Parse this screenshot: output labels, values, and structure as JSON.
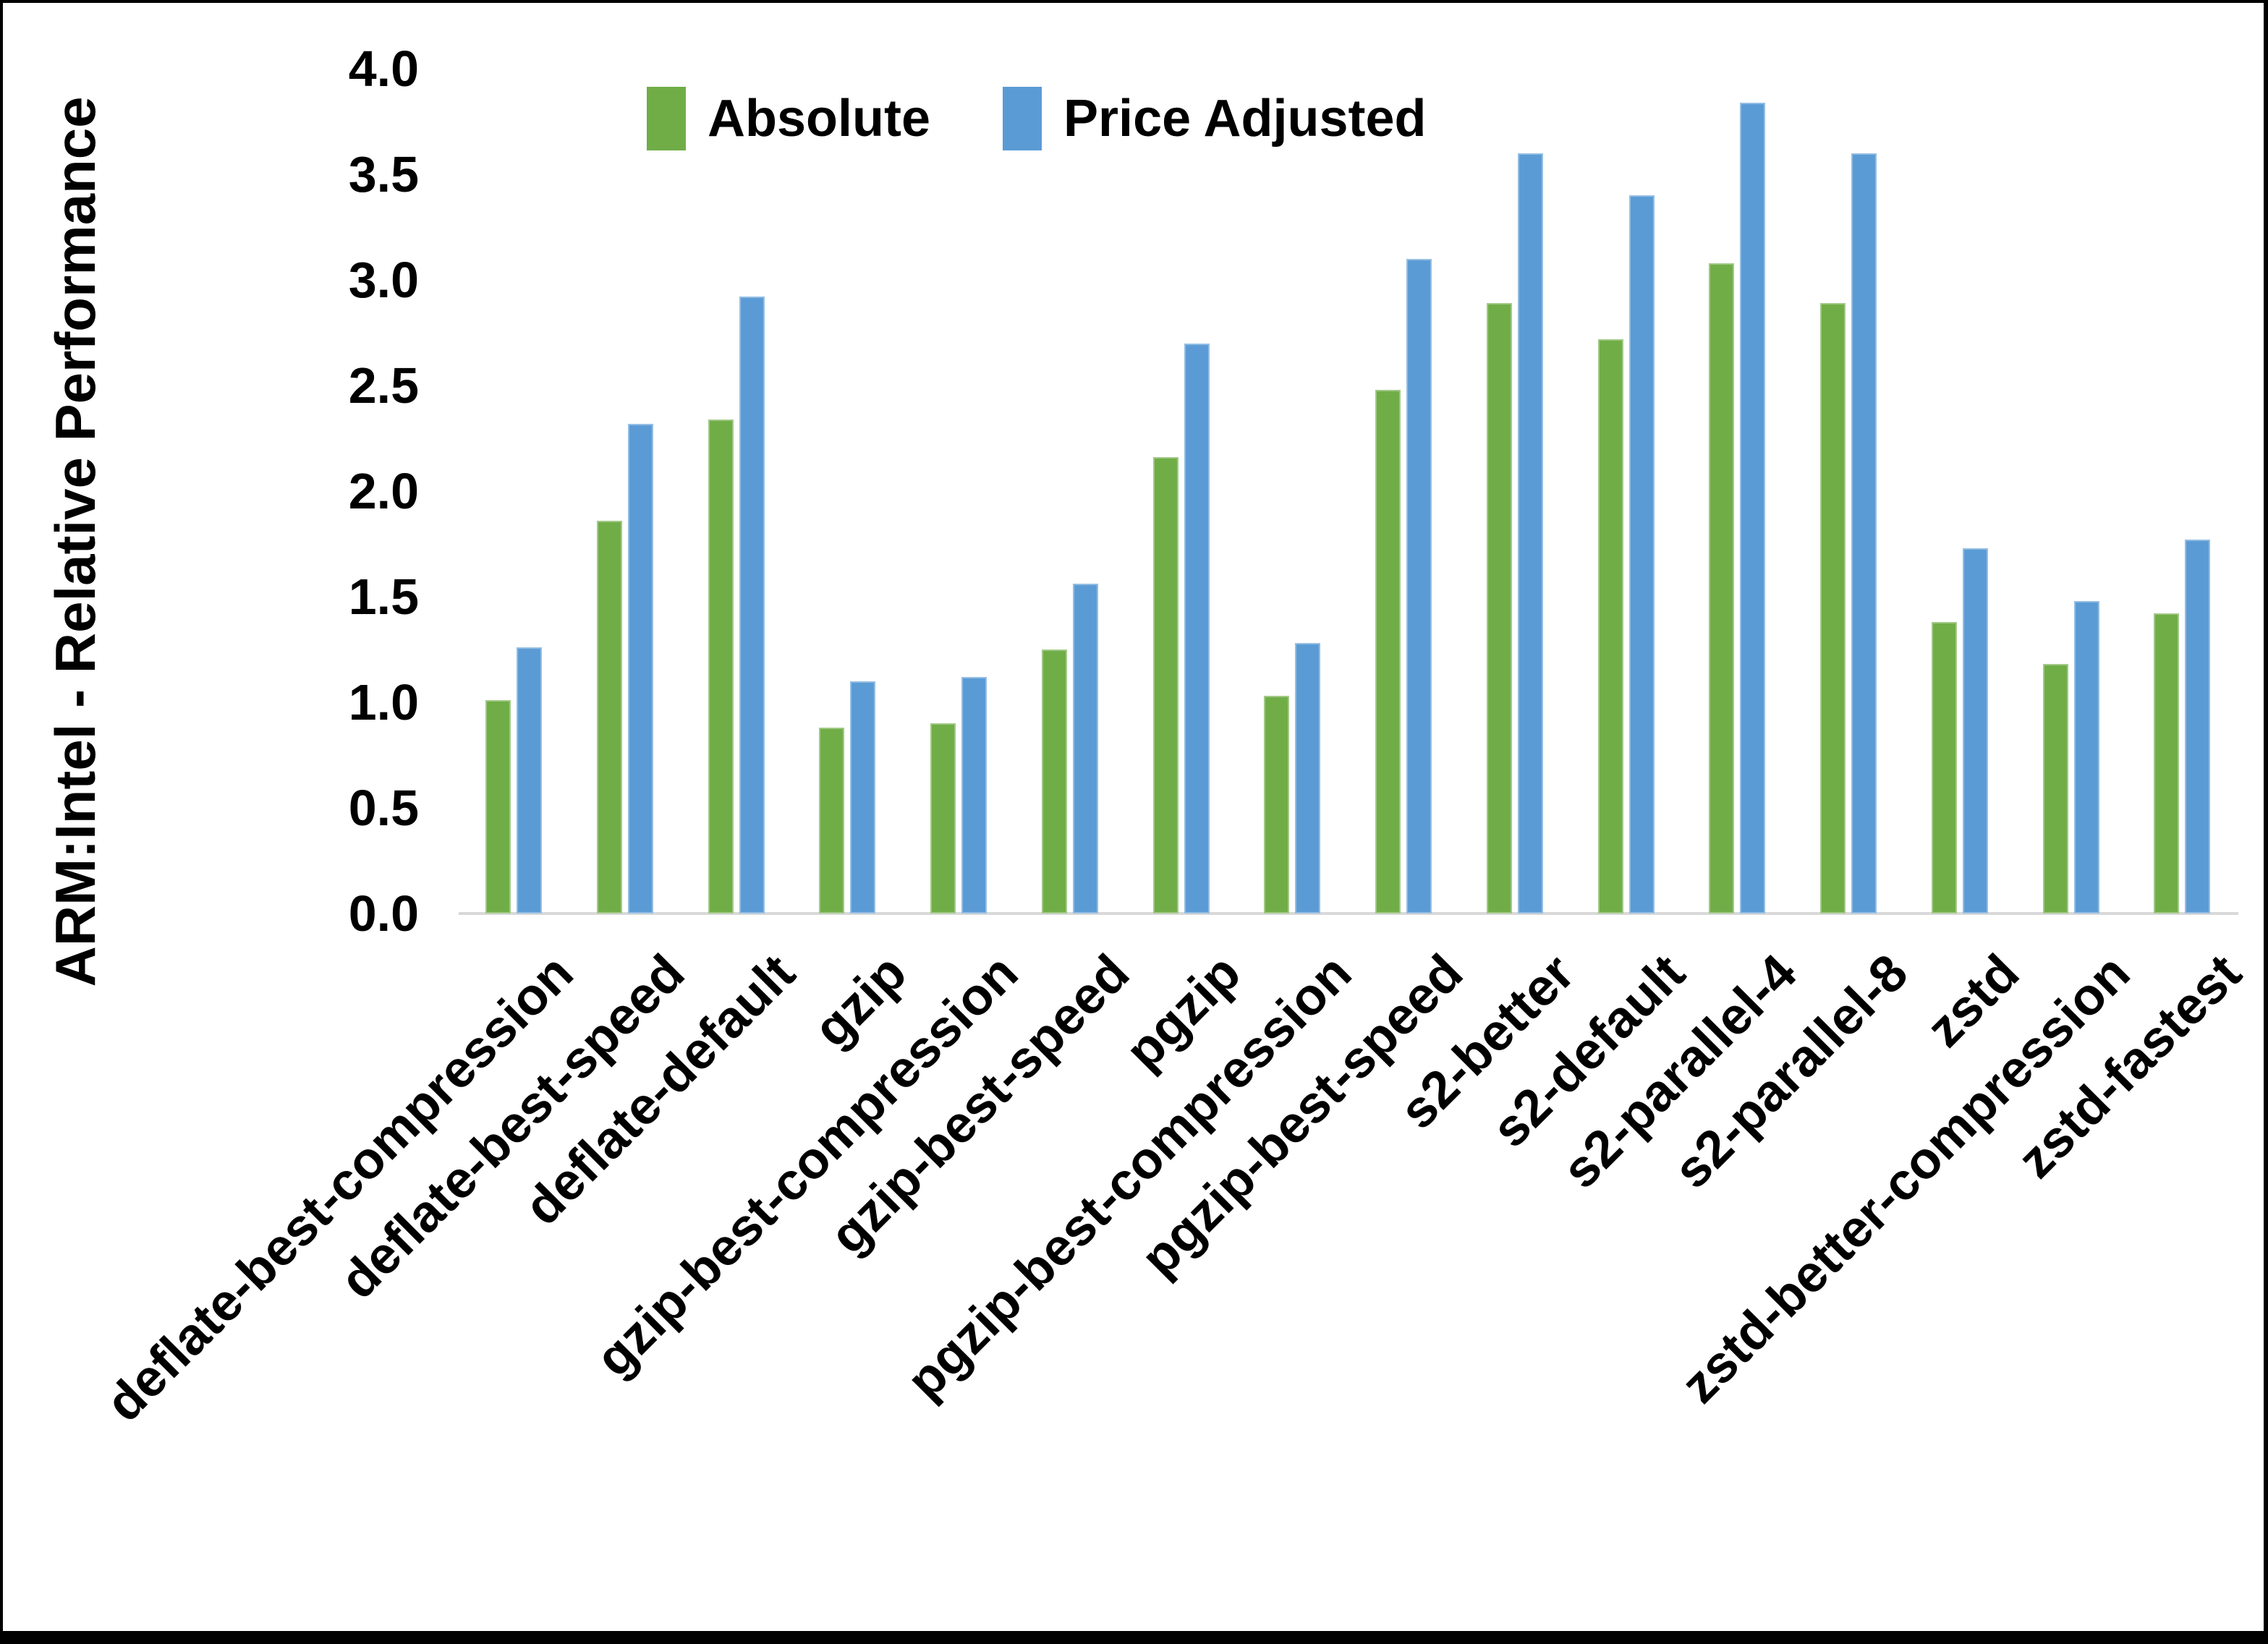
{
  "chart_data": {
    "type": "bar",
    "title": "",
    "xlabel": "",
    "ylabel": "ARM:Intel - Relative Performance",
    "ylim": [
      0,
      4
    ],
    "ytick_step": 0.5,
    "yticks": [
      "0.0",
      "0.5",
      "1.0",
      "1.5",
      "2.0",
      "2.5",
      "3.0",
      "3.5",
      "4.0"
    ],
    "grid": false,
    "legend_position": "top-center",
    "categories": [
      "deflate-best-compression",
      "deflate-best-speed",
      "deflate-default",
      "gzip",
      "gzip-best-compression",
      "gzip-best-speed",
      "pgzip",
      "pgzip-best-compression",
      "pgzip-best-speed",
      "s2-better",
      "s2-default",
      "s2-parallel-4",
      "s2-parallel-8",
      "zstd",
      "zstd-better-compression",
      "zstd-fastest"
    ],
    "series": [
      {
        "name": "Absolute",
        "color": "#70AD47",
        "values": [
          1.01,
          1.86,
          2.34,
          0.88,
          0.9,
          1.25,
          2.16,
          1.03,
          2.48,
          2.89,
          2.72,
          3.08,
          2.89,
          1.38,
          1.18,
          1.42
        ]
      },
      {
        "name": "Price Adjusted",
        "color": "#5B9BD5",
        "values": [
          1.26,
          2.32,
          2.92,
          1.1,
          1.12,
          1.56,
          2.7,
          1.28,
          3.1,
          3.6,
          3.4,
          3.84,
          3.6,
          1.73,
          1.48,
          1.77
        ]
      }
    ],
    "axis_line_color": "#D9D9D9",
    "text_color": "#000000",
    "background_color": "#FFFFFF",
    "frame_color": "#000000"
  }
}
